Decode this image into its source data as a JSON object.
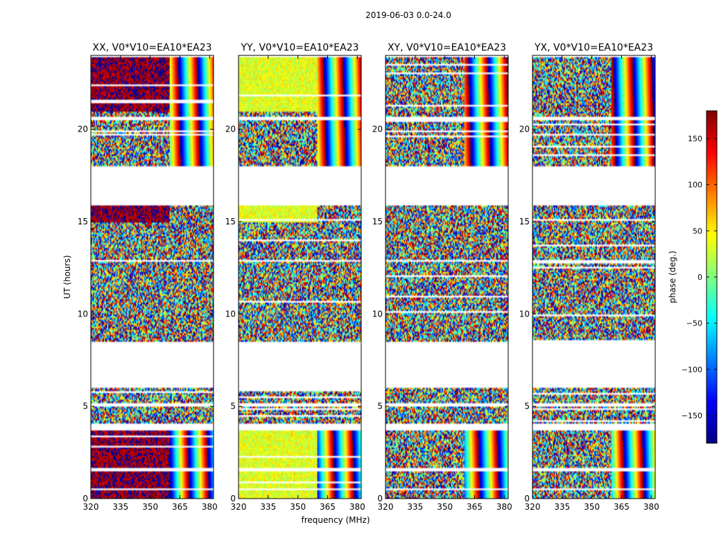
{
  "suptitle": "2019-06-03 0.0-24.0",
  "chart_data": {
    "type": "heatmap",
    "xlabel": "frequency (MHz)",
    "ylabel": "UT (hours)",
    "xlim": [
      320,
      382
    ],
    "ylim": [
      0,
      24
    ],
    "x_ticks": [
      320,
      335,
      350,
      365,
      380
    ],
    "y_ticks": [
      0,
      5,
      10,
      15,
      20
    ],
    "panels": [
      {
        "title": "XX, V0*V10=EA10*EA23",
        "bias": 172,
        "bias_rows": [
          [
            0,
            4
          ],
          [
            15,
            16
          ],
          [
            21,
            24
          ]
        ],
        "bias_fmax": 360,
        "stripe_phase": 0
      },
      {
        "title": "YY, V0*V10=EA10*EA23",
        "bias": 35,
        "bias_rows": [
          [
            0,
            4
          ],
          [
            15,
            16
          ],
          [
            21,
            24
          ]
        ],
        "bias_fmax": 360,
        "stripe_phase": 1
      },
      {
        "title": "XY, V0*V10=EA10*EA23",
        "bias": null,
        "bias_rows": [],
        "bias_fmax": 360,
        "stripe_phase": 2
      },
      {
        "title": "YX, V0*V10=EA10*EA23",
        "bias": null,
        "bias_rows": [],
        "bias_fmax": 360,
        "stripe_phase": 3
      }
    ],
    "data_blocks_ut": [
      [
        0.0,
        0.5
      ],
      [
        0.55,
        1.5
      ],
      [
        1.65,
        3.7
      ],
      [
        4.1,
        5.0
      ],
      [
        5.2,
        6.0
      ],
      [
        8.5,
        12.8
      ],
      [
        12.9,
        15.9
      ],
      [
        18.0,
        20.5
      ],
      [
        20.7,
        23.9
      ]
    ],
    "colorbar": {
      "label": "phase (deg.)",
      "range": [
        -180,
        180
      ],
      "ticks": [
        -150,
        -100,
        -50,
        0,
        50,
        100,
        150
      ],
      "tick_labels": [
        "−150",
        "−100",
        "−50",
        "0",
        "50",
        "100",
        "150"
      ],
      "colormap": [
        "#00007f",
        "#0000ff",
        "#007fff",
        "#00ffff",
        "#7fff7f",
        "#ffff00",
        "#ff7f00",
        "#ff0000",
        "#7f0000"
      ]
    }
  }
}
